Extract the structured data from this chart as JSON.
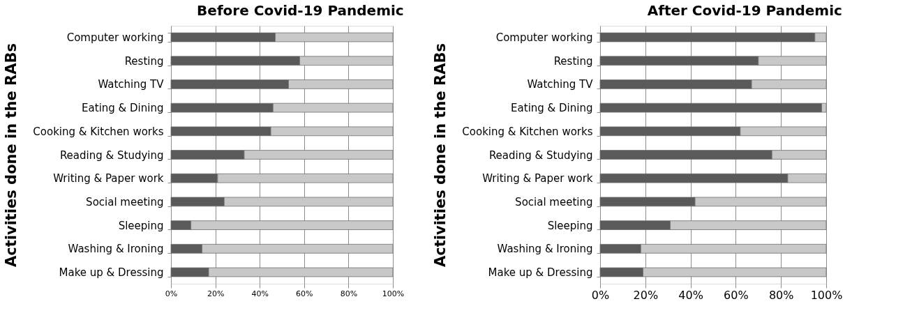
{
  "chart_data": [
    {
      "type": "bar",
      "orientation": "horizontal",
      "stacked": true,
      "title": "Before Covid-19 Pandemic",
      "ylabel": "Activities done in the RABs",
      "categories": [
        "Computer working",
        "Resting",
        "Watching TV",
        "Eating & Dining",
        "Cooking & Kitchen works",
        "Reading & Studying",
        "Writing & Paper work",
        "Social meeting",
        "Sleeping",
        "Washing & Ironing",
        "Make up & Dressing"
      ],
      "series": [
        {
          "color": "#5a5a5a",
          "values": [
            47,
            58,
            53,
            46,
            45,
            33,
            21,
            24,
            9,
            14,
            17
          ]
        },
        {
          "color": "#c8c8c8",
          "values": [
            53,
            42,
            47,
            54,
            55,
            67,
            79,
            76,
            91,
            86,
            83
          ]
        }
      ],
      "xlim": [
        0,
        100
      ],
      "xticks": [
        {
          "value": 0,
          "label": "0%"
        },
        {
          "value": 20,
          "label": "20%"
        },
        {
          "value": 40,
          "label": "40%"
        },
        {
          "value": 60,
          "label": "60%"
        },
        {
          "value": 80,
          "label": "80%"
        },
        {
          "value": 100,
          "label": "100%"
        }
      ],
      "grid": "x"
    },
    {
      "type": "bar",
      "orientation": "horizontal",
      "stacked": true,
      "title": "After Covid-19 Pandemic",
      "ylabel": "Activities done in the RABs",
      "categories": [
        "Computer working",
        "Resting",
        "Watching TV",
        "Eating & Dining",
        "Cooking & Kitchen works",
        "Reading & Studying",
        "Writing & Paper work",
        "Social meeting",
        "Sleeping",
        "Washing & Ironing",
        "Make up & Dressing"
      ],
      "series": [
        {
          "color": "#5a5a5a",
          "values": [
            95,
            70,
            67,
            98,
            62,
            76,
            83,
            42,
            31,
            18,
            19
          ]
        },
        {
          "color": "#c8c8c8",
          "values": [
            5,
            30,
            33,
            2,
            38,
            24,
            17,
            58,
            69,
            82,
            81
          ]
        }
      ],
      "xlim": [
        0,
        100
      ],
      "xticks": [
        {
          "value": 0,
          "label": "0%"
        },
        {
          "value": 20,
          "label": "20%"
        },
        {
          "value": 40,
          "label": "40%"
        },
        {
          "value": 60,
          "label": "60%"
        },
        {
          "value": 80,
          "label": "80%"
        },
        {
          "value": 100,
          "label": "100%"
        }
      ],
      "grid": "x"
    }
  ]
}
